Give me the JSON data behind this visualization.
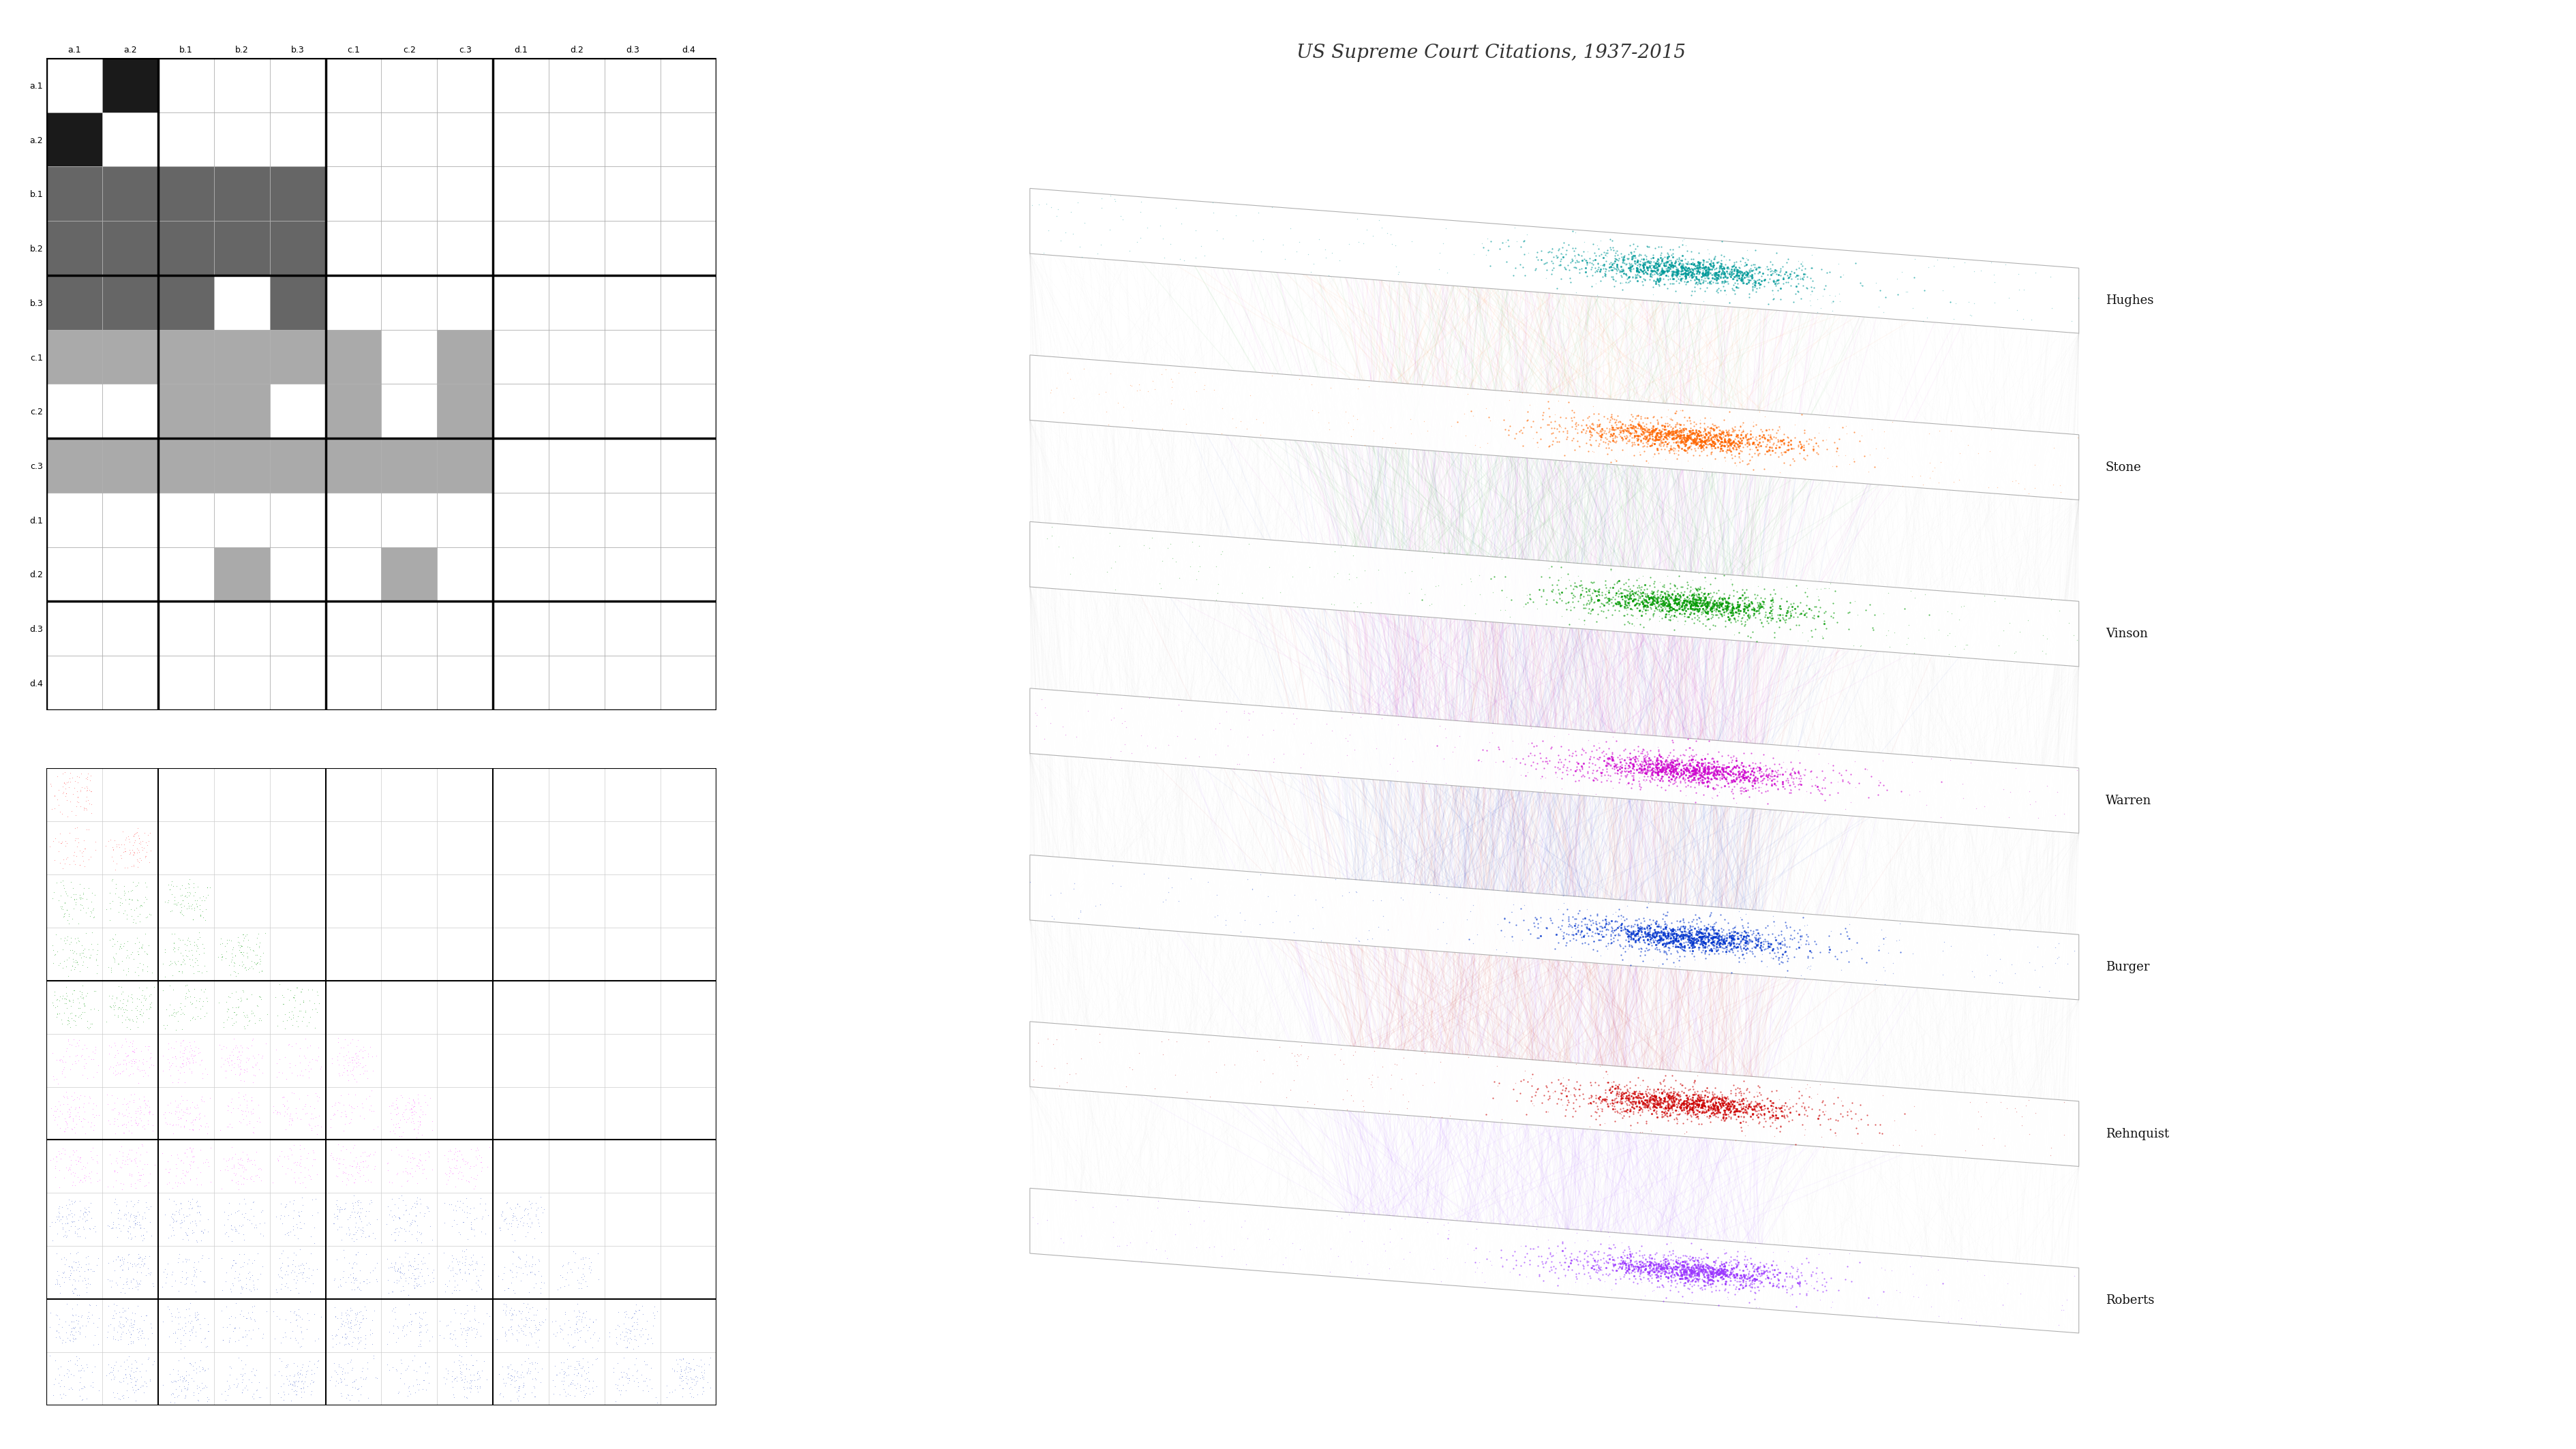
{
  "title": "US Supreme Court Citations, 1937-2015",
  "title_fontsize": 20,
  "background_color": "#ffffff",
  "categories": [
    "a.1",
    "a.2",
    "b.1",
    "b.2",
    "b.3",
    "c.1",
    "c.2",
    "c.3",
    "d.1",
    "d.2",
    "d.3",
    "d.4"
  ],
  "n_cats": 12,
  "matrix_colors": [
    [
      "#ffffff",
      "#1a1a1a",
      "#ffffff",
      "#ffffff",
      "#ffffff",
      "#ffffff",
      "#ffffff",
      "#ffffff",
      "#ffffff",
      "#ffffff",
      "#ffffff",
      "#ffffff"
    ],
    [
      "#1a1a1a",
      "#ffffff",
      "#ffffff",
      "#ffffff",
      "#ffffff",
      "#ffffff",
      "#ffffff",
      "#ffffff",
      "#ffffff",
      "#ffffff",
      "#ffffff",
      "#ffffff"
    ],
    [
      "#666666",
      "#666666",
      "#666666",
      "#666666",
      "#666666",
      "#ffffff",
      "#ffffff",
      "#ffffff",
      "#ffffff",
      "#ffffff",
      "#ffffff",
      "#ffffff"
    ],
    [
      "#666666",
      "#666666",
      "#666666",
      "#666666",
      "#666666",
      "#ffffff",
      "#ffffff",
      "#ffffff",
      "#ffffff",
      "#ffffff",
      "#ffffff",
      "#ffffff"
    ],
    [
      "#666666",
      "#666666",
      "#666666",
      "#ffffff",
      "#666666",
      "#ffffff",
      "#ffffff",
      "#ffffff",
      "#ffffff",
      "#ffffff",
      "#ffffff",
      "#ffffff"
    ],
    [
      "#aaaaaa",
      "#aaaaaa",
      "#aaaaaa",
      "#aaaaaa",
      "#aaaaaa",
      "#aaaaaa",
      "#ffffff",
      "#aaaaaa",
      "#ffffff",
      "#ffffff",
      "#ffffff",
      "#ffffff"
    ],
    [
      "#ffffff",
      "#ffffff",
      "#aaaaaa",
      "#aaaaaa",
      "#ffffff",
      "#aaaaaa",
      "#ffffff",
      "#aaaaaa",
      "#ffffff",
      "#ffffff",
      "#ffffff",
      "#ffffff"
    ],
    [
      "#aaaaaa",
      "#aaaaaa",
      "#aaaaaa",
      "#aaaaaa",
      "#aaaaaa",
      "#aaaaaa",
      "#aaaaaa",
      "#aaaaaa",
      "#ffffff",
      "#ffffff",
      "#ffffff",
      "#ffffff"
    ],
    [
      "#ffffff",
      "#ffffff",
      "#ffffff",
      "#ffffff",
      "#ffffff",
      "#ffffff",
      "#ffffff",
      "#ffffff",
      "#ffffff",
      "#ffffff",
      "#ffffff",
      "#ffffff"
    ],
    [
      "#ffffff",
      "#ffffff",
      "#ffffff",
      "#aaaaaa",
      "#ffffff",
      "#ffffff",
      "#aaaaaa",
      "#ffffff",
      "#ffffff",
      "#ffffff",
      "#ffffff",
      "#ffffff"
    ],
    [
      "#ffffff",
      "#ffffff",
      "#ffffff",
      "#ffffff",
      "#ffffff",
      "#ffffff",
      "#ffffff",
      "#ffffff",
      "#ffffff",
      "#ffffff",
      "#ffffff",
      "#ffffff"
    ],
    [
      "#ffffff",
      "#ffffff",
      "#ffffff",
      "#ffffff",
      "#ffffff",
      "#ffffff",
      "#ffffff",
      "#ffffff",
      "#ffffff",
      "#ffffff",
      "#ffffff",
      "#ffffff"
    ]
  ],
  "group_edges": [
    0,
    2,
    5,
    8,
    12
  ],
  "eras": [
    "Roberts",
    "Rehnquist",
    "Burger",
    "Warren",
    "Vinson",
    "Stone",
    "Hughes"
  ],
  "era_colors": [
    "#9933FF",
    "#CC0000",
    "#0033CC",
    "#CC00CC",
    "#009900",
    "#FF6600",
    "#009999"
  ],
  "tri_row_colors": [
    "#FF3333",
    "#FF3333",
    "#009900",
    "#009900",
    "#009900",
    "#FF44FF",
    "#FF44FF",
    "#FF44FF",
    "#3355CC",
    "#3355CC",
    "#3355CC",
    "#3355CC"
  ]
}
